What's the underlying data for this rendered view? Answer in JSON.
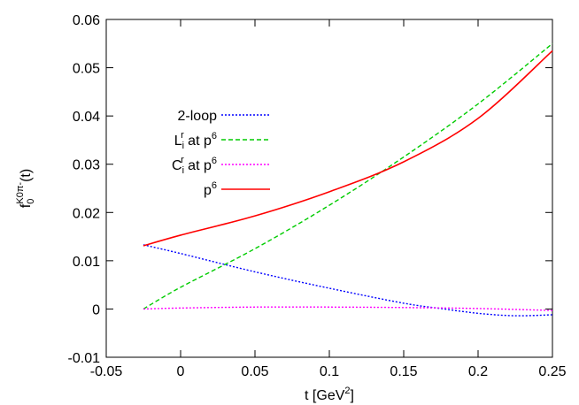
{
  "chart_data": {
    "type": "line",
    "xlabel": {
      "base": "t [GeV",
      "sup": "2",
      "tail": "]"
    },
    "ylabel": {
      "main": "f",
      "sub": "0",
      "sup": "K0π-",
      "tail": "(t)"
    },
    "xlim": [
      -0.05,
      0.25
    ],
    "ylim": [
      -0.01,
      0.06
    ],
    "xticks": [
      -0.05,
      0,
      0.05,
      0.1,
      0.15,
      0.2,
      0.25
    ],
    "xtick_labels": [
      "-0.05",
      "0",
      "0.05",
      "0.1",
      "0.15",
      "0.2",
      "0.25"
    ],
    "yticks": [
      -0.01,
      0,
      0.01,
      0.02,
      0.03,
      0.04,
      0.05,
      0.06
    ],
    "ytick_labels": [
      "-0.01",
      "0",
      "0.01",
      "0.02",
      "0.03",
      "0.04",
      "0.05",
      "0.06"
    ],
    "grid": false,
    "legend_position": "left",
    "series": [
      {
        "name": "2-loop",
        "label": {
          "main": "2-loop"
        },
        "color": "#0000ff",
        "style": "dotted",
        "x": [
          -0.025,
          0,
          0.05,
          0.1,
          0.15,
          0.175,
          0.2,
          0.225,
          0.25
        ],
        "y": [
          0.0133,
          0.0115,
          0.0077,
          0.0043,
          0.0012,
          0.0001,
          -0.0009,
          -0.0014,
          -0.0012
        ]
      },
      {
        "name": "Lir at p6",
        "label": {
          "main": "L",
          "sub": "i",
          "sup": "r",
          "tail": " at p",
          "sup2": "6"
        },
        "color": "#00cc00",
        "style": "dashed",
        "x": [
          -0.025,
          0,
          0.05,
          0.1,
          0.15,
          0.2,
          0.25
        ],
        "y": [
          0.0,
          0.0045,
          0.0125,
          0.0215,
          0.0315,
          0.0425,
          0.055
        ]
      },
      {
        "name": "Cir at p6",
        "label": {
          "main": "C",
          "sub": "i",
          "sup": "r",
          "tail": " at p",
          "sup2": "6"
        },
        "color": "#ff00ff",
        "style": "dotted",
        "x": [
          -0.025,
          0,
          0.05,
          0.1,
          0.15,
          0.2,
          0.25
        ],
        "y": [
          0.0,
          0.0002,
          0.0004,
          0.0004,
          0.0003,
          0.0001,
          -0.0003
        ]
      },
      {
        "name": "p6",
        "label": {
          "main": "p",
          "sup": "6"
        },
        "color": "#ff0000",
        "style": "solid",
        "x": [
          -0.025,
          0,
          0.05,
          0.1,
          0.15,
          0.2,
          0.25
        ],
        "y": [
          0.0131,
          0.0153,
          0.0193,
          0.0243,
          0.0305,
          0.0395,
          0.0535
        ]
      }
    ]
  }
}
